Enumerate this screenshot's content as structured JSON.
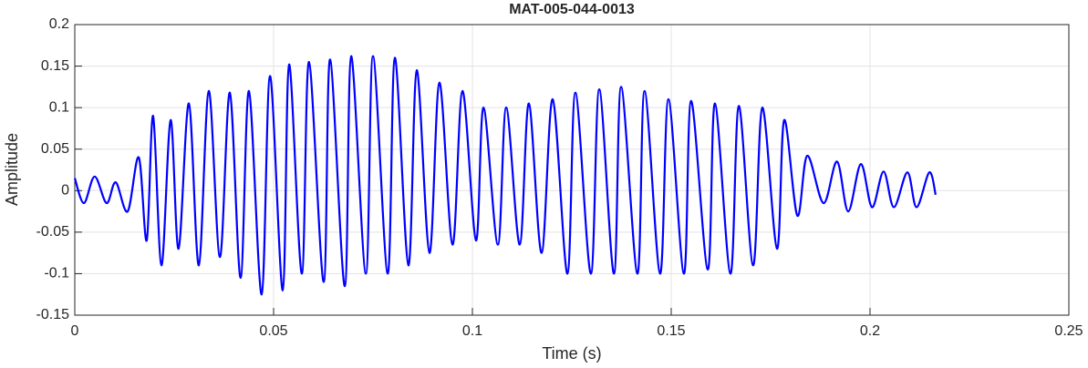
{
  "chart_data": {
    "type": "line",
    "title": "MAT-005-044-0013",
    "x_label": "Time (s)",
    "y_label": "Amplitude",
    "xlim": [
      0,
      0.25
    ],
    "xticks": [
      0,
      0.05,
      0.1,
      0.15,
      0.2,
      0.25
    ],
    "ylim": [
      -0.15,
      0.2
    ],
    "yticks": [
      -0.15,
      -0.1,
      -0.05,
      0,
      0.05,
      0.1,
      0.15,
      0.2
    ],
    "grid": true,
    "series": [
      {
        "color": "#0000ff",
        "x": [
          0,
          0.0023,
          0.005,
          0.008,
          0.0103,
          0.0133,
          0.0161,
          0.0181,
          0.0197,
          0.0218,
          0.0241,
          0.0261,
          0.0287,
          0.0312,
          0.0337,
          0.0365,
          0.039,
          0.0417,
          0.0438,
          0.047,
          0.0491,
          0.0523,
          0.0539,
          0.0571,
          0.0589,
          0.0626,
          0.0642,
          0.0679,
          0.0695,
          0.0732,
          0.075,
          0.0787,
          0.0805,
          0.0839,
          0.086,
          0.0892,
          0.0917,
          0.095,
          0.0975,
          0.1009,
          0.1028,
          0.1064,
          0.1085,
          0.1119,
          0.1142,
          0.1174,
          0.1202,
          0.1239,
          0.1259,
          0.1298,
          0.1319,
          0.1356,
          0.1374,
          0.1415,
          0.1433,
          0.1472,
          0.1493,
          0.1532,
          0.155,
          0.1592,
          0.161,
          0.1649,
          0.167,
          0.1706,
          0.1729,
          0.1766,
          0.1784,
          0.1817,
          0.1842,
          0.1883,
          0.1917,
          0.1945,
          0.1977,
          0.2005,
          0.2034,
          0.206,
          0.2094,
          0.2117,
          0.2149,
          0.2165
        ],
        "values": [
          0.015,
          -0.015,
          0.017,
          -0.015,
          0.01,
          -0.025,
          0.04,
          -0.06,
          0.09,
          -0.09,
          0.085,
          -0.07,
          0.105,
          -0.09,
          0.12,
          -0.08,
          0.118,
          -0.105,
          0.12,
          -0.125,
          0.138,
          -0.12,
          0.152,
          -0.1,
          0.155,
          -0.11,
          0.158,
          -0.115,
          0.162,
          -0.1,
          0.162,
          -0.1,
          0.16,
          -0.09,
          0.145,
          -0.075,
          0.13,
          -0.065,
          0.12,
          -0.06,
          0.1,
          -0.065,
          0.1,
          -0.065,
          0.105,
          -0.075,
          0.11,
          -0.1,
          0.118,
          -0.1,
          0.122,
          -0.1,
          0.125,
          -0.1,
          0.12,
          -0.1,
          0.11,
          -0.1,
          0.108,
          -0.095,
          0.105,
          -0.1,
          0.102,
          -0.09,
          0.1,
          -0.07,
          0.085,
          -0.03,
          0.042,
          -0.015,
          0.035,
          -0.025,
          0.032,
          -0.02,
          0.023,
          -0.02,
          0.022,
          -0.02,
          0.022,
          -0.005
        ]
      }
    ]
  }
}
